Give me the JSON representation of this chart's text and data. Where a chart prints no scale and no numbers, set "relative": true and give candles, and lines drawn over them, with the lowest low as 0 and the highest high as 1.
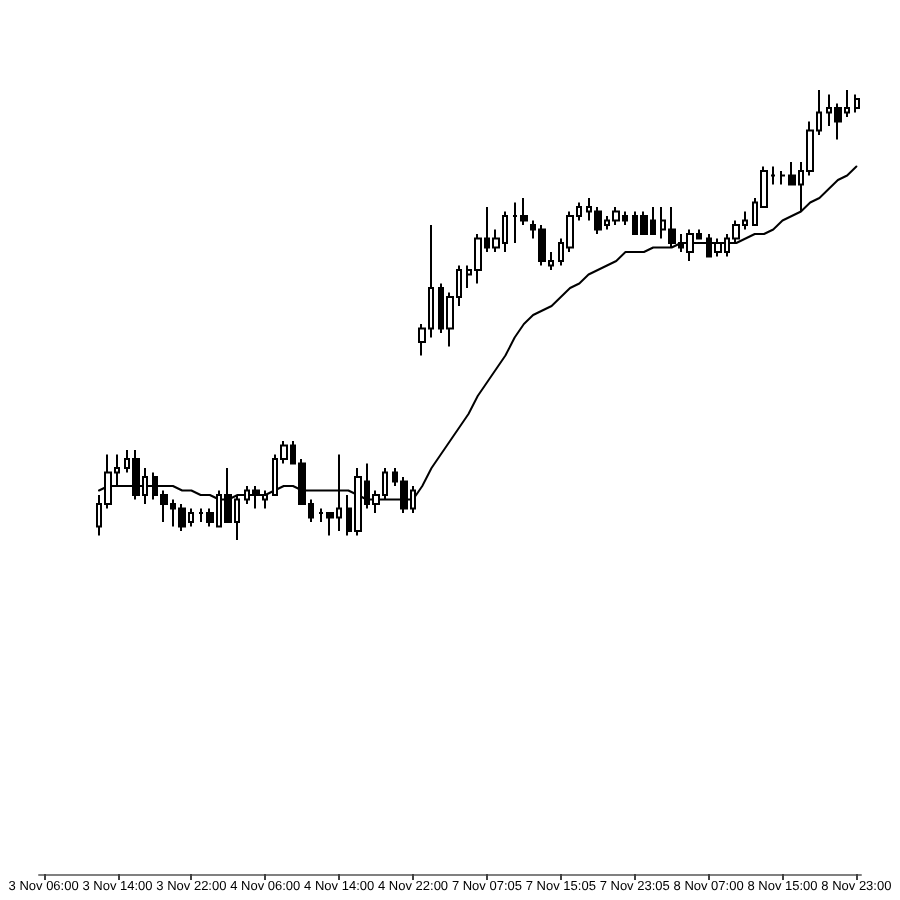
{
  "chart_data": {
    "type": "candlestick",
    "relative": true,
    "categories": [
      "3 Nov 06:00",
      null,
      null,
      null,
      null,
      null,
      null,
      null,
      "3 Nov 14:00",
      null,
      null,
      null,
      null,
      null,
      null,
      null,
      "3 Nov 22:00",
      null,
      null,
      null,
      null,
      null,
      null,
      null,
      "4 Nov 06:00",
      null,
      null,
      null,
      null,
      null,
      null,
      null,
      "4 Nov 14:00",
      null,
      null,
      null,
      null,
      null,
      null,
      null,
      "4 Nov 22:00",
      null,
      null,
      null,
      null,
      null,
      null,
      null,
      "7 Nov 07:05",
      null,
      null,
      null,
      null,
      null,
      null,
      null,
      "7 Nov 15:05",
      null,
      null,
      null,
      null,
      null,
      null,
      null,
      "7 Nov 23:05",
      null,
      null,
      null,
      null,
      null,
      null,
      null,
      "8 Nov 07:00",
      null,
      null,
      null,
      null,
      null,
      null,
      null,
      "8 Nov 15:00",
      null,
      null,
      null,
      null,
      null,
      null,
      null,
      "8 Nov 23:00"
    ],
    "series": [
      {
        "type": "candlestick",
        "color": "#000000",
        "ohlc": [
          null,
          null,
          null,
          null,
          null,
          null,
          [
            0.03,
            0.1,
            0.01,
            0.08
          ],
          [
            0.08,
            0.19,
            0.07,
            0.15
          ],
          [
            0.15,
            0.19,
            0.12,
            0.16
          ],
          [
            0.16,
            0.2,
            0.15,
            0.18
          ],
          [
            0.18,
            0.2,
            0.09,
            0.1
          ],
          [
            0.1,
            0.16,
            0.08,
            0.14
          ],
          [
            0.14,
            0.15,
            0.09,
            0.1
          ],
          [
            0.1,
            0.11,
            0.04,
            0.08
          ],
          [
            0.08,
            0.09,
            0.03,
            0.07
          ],
          [
            0.07,
            0.08,
            0.02,
            0.03
          ],
          [
            0.04,
            0.07,
            0.03,
            0.06
          ],
          [
            0.06,
            0.07,
            0.04,
            0.06
          ],
          [
            0.06,
            0.07,
            0.03,
            0.04
          ],
          [
            0.03,
            0.11,
            0.03,
            0.1
          ],
          [
            0.1,
            0.16,
            0.04,
            0.04
          ],
          [
            0.04,
            0.1,
            0,
            0.09
          ],
          [
            0.09,
            0.12,
            0.08,
            0.11
          ],
          [
            0.11,
            0.12,
            0.07,
            0.1
          ],
          [
            0.09,
            0.11,
            0.07,
            0.1
          ],
          [
            0.1,
            0.19,
            0.1,
            0.18
          ],
          [
            0.18,
            0.22,
            0.17,
            0.21
          ],
          [
            0.21,
            0.22,
            0.17,
            0.17
          ],
          [
            0.17,
            0.18,
            0.08,
            0.08
          ],
          [
            0.08,
            0.09,
            0.04,
            0.05
          ],
          [
            0.06,
            0.07,
            0.04,
            0.06
          ],
          [
            0.06,
            0.06,
            0.01,
            0.05
          ],
          [
            0.05,
            0.19,
            0.02,
            0.07
          ],
          [
            0.07,
            0.1,
            0.01,
            0.02
          ],
          [
            0.02,
            0.16,
            0.01,
            0.14
          ],
          [
            0.13,
            0.17,
            0.07,
            0.08
          ],
          [
            0.08,
            0.11,
            0.06,
            0.1
          ],
          [
            0.1,
            0.16,
            0.09,
            0.15
          ],
          [
            0.15,
            0.16,
            0.12,
            0.13
          ],
          [
            0.13,
            0.14,
            0.06,
            0.07
          ],
          [
            0.07,
            0.12,
            0.06,
            0.11
          ],
          [
            0.44,
            0.48,
            0.41,
            0.47
          ],
          [
            0.47,
            0.7,
            0.45,
            0.56
          ],
          [
            0.56,
            0.57,
            0.46,
            0.47
          ],
          [
            0.47,
            0.55,
            0.43,
            0.54
          ],
          [
            0.54,
            0.61,
            0.52,
            0.6
          ],
          [
            0.59,
            0.61,
            0.56,
            0.6
          ],
          [
            0.6,
            0.68,
            0.57,
            0.67
          ],
          [
            0.67,
            0.74,
            0.64,
            0.65
          ],
          [
            0.65,
            0.69,
            0.64,
            0.67
          ],
          [
            0.66,
            0.73,
            0.64,
            0.72
          ],
          [
            0.72,
            0.75,
            0.66,
            0.72
          ],
          [
            0.72,
            0.76,
            0.7,
            0.71
          ],
          [
            0.7,
            0.71,
            0.67,
            0.69
          ],
          [
            0.69,
            0.7,
            0.61,
            0.62
          ],
          [
            0.61,
            0.64,
            0.6,
            0.62
          ],
          [
            0.62,
            0.67,
            0.61,
            0.66
          ],
          [
            0.65,
            0.73,
            0.64,
            0.72
          ],
          [
            0.72,
            0.75,
            0.71,
            0.74
          ],
          [
            0.73,
            0.76,
            0.71,
            0.74
          ],
          [
            0.73,
            0.74,
            0.68,
            0.69
          ],
          [
            0.7,
            0.72,
            0.69,
            0.71
          ],
          [
            0.71,
            0.74,
            0.7,
            0.73
          ],
          [
            0.72,
            0.73,
            0.7,
            0.71
          ],
          [
            0.72,
            0.73,
            0.68,
            0.68
          ],
          [
            0.72,
            0.73,
            0.68,
            0.68
          ],
          [
            0.71,
            0.74,
            0.68,
            0.68
          ],
          [
            0.69,
            0.74,
            0.67,
            0.71
          ],
          [
            0.69,
            0.74,
            0.65,
            0.66
          ],
          [
            0.66,
            0.68,
            0.64,
            0.65
          ],
          [
            0.64,
            0.69,
            0.62,
            0.68
          ],
          [
            0.68,
            0.69,
            0.67,
            0.67
          ],
          [
            0.67,
            0.68,
            0.63,
            0.63
          ],
          [
            0.64,
            0.67,
            0.63,
            0.66
          ],
          [
            0.64,
            0.68,
            0.63,
            0.67
          ],
          [
            0.67,
            0.71,
            0.66,
            0.7
          ],
          [
            0.7,
            0.73,
            0.69,
            0.71
          ],
          [
            0.7,
            0.76,
            0.7,
            0.75
          ],
          [
            0.74,
            0.83,
            0.74,
            0.82
          ],
          [
            0.81,
            0.83,
            0.79,
            0.81
          ],
          [
            0.81,
            0.82,
            0.79,
            0.81
          ],
          [
            0.81,
            0.84,
            0.79,
            0.79
          ],
          [
            0.79,
            0.84,
            0.73,
            0.82
          ],
          [
            0.82,
            0.93,
            0.81,
            0.91
          ],
          [
            0.91,
            1,
            0.9,
            0.95
          ],
          [
            0.95,
            0.99,
            0.92,
            0.96
          ],
          [
            0.96,
            0.97,
            0.89,
            0.93
          ],
          [
            0.95,
            1,
            0.94,
            0.96
          ],
          [
            0.96,
            0.99,
            0.95,
            0.98
          ]
        ]
      },
      {
        "type": "line",
        "color": "#000000",
        "values": [
          null,
          null,
          null,
          null,
          null,
          null,
          0.11,
          0.12,
          0.12,
          0.12,
          0.12,
          0.12,
          0.12,
          0.12,
          0.12,
          0.11,
          0.11,
          0.1,
          0.1,
          0.09,
          0.09,
          0.1,
          0.1,
          0.1,
          0.1,
          0.11,
          0.12,
          0.12,
          0.11,
          0.11,
          0.11,
          0.11,
          0.11,
          0.11,
          0.1,
          0.09,
          0.09,
          0.09,
          0.09,
          0.09,
          0.09,
          0.12,
          0.16,
          0.19,
          0.22,
          0.25,
          0.28,
          0.32,
          0.35,
          0.38,
          0.41,
          0.45,
          0.48,
          0.5,
          0.51,
          0.52,
          0.54,
          0.56,
          0.57,
          0.59,
          0.6,
          0.61,
          0.62,
          0.64,
          0.64,
          0.64,
          0.65,
          0.65,
          0.65,
          0.66,
          0.66,
          0.66,
          0.66,
          0.66,
          0.66,
          0.66,
          0.67,
          0.68,
          0.68,
          0.69,
          0.71,
          0.72,
          0.73,
          0.75,
          0.76,
          0.78,
          0.8,
          0.81,
          0.83
        ]
      }
    ]
  }
}
